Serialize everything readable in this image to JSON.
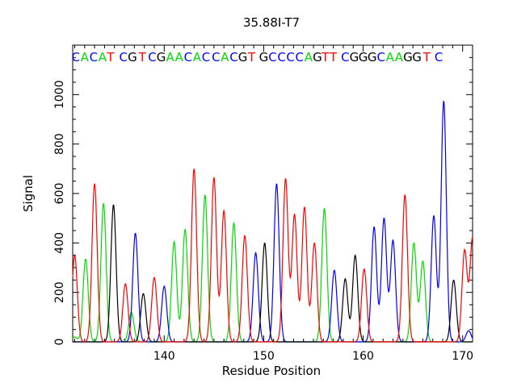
{
  "chart_data": {
    "type": "line",
    "title": "35.88I-T7",
    "xlabel": "Residue Position",
    "ylabel": "Signal",
    "xlim": [
      130.8,
      171.0
    ],
    "ylim": [
      0,
      1200
    ],
    "xticks": [
      140,
      150,
      160,
      170
    ],
    "yticks": [
      0,
      200,
      400,
      600,
      800,
      1000
    ],
    "grid": false,
    "colors": {
      "A": "#00dd00",
      "C": "#0000ff",
      "G": "#000000",
      "T": "#ff0000"
    },
    "bases": [
      {
        "base": "C",
        "x": 131.1
      },
      {
        "base": "A",
        "x": 132.0
      },
      {
        "base": "C",
        "x": 132.9
      },
      {
        "base": "A",
        "x": 133.8
      },
      {
        "base": "T",
        "x": 134.6
      },
      {
        "base": "C",
        "x": 135.9
      },
      {
        "base": "G",
        "x": 136.8
      },
      {
        "base": "T",
        "x": 137.8
      },
      {
        "base": "C",
        "x": 138.8
      },
      {
        "base": "G",
        "x": 139.7
      },
      {
        "base": "A",
        "x": 140.6
      },
      {
        "base": "A",
        "x": 141.5
      },
      {
        "base": "C",
        "x": 142.4
      },
      {
        "base": "A",
        "x": 143.3
      },
      {
        "base": "C",
        "x": 144.2
      },
      {
        "base": "C",
        "x": 145.2
      },
      {
        "base": "A",
        "x": 146.1
      },
      {
        "base": "C",
        "x": 147.0
      },
      {
        "base": "G",
        "x": 147.9
      },
      {
        "base": "T",
        "x": 148.8
      },
      {
        "base": "G",
        "x": 150.0
      },
      {
        "base": "C",
        "x": 150.9
      },
      {
        "base": "C",
        "x": 151.8
      },
      {
        "base": "C",
        "x": 152.7
      },
      {
        "base": "C",
        "x": 153.6
      },
      {
        "base": "A",
        "x": 154.5
      },
      {
        "base": "G",
        "x": 155.4
      },
      {
        "base": "T",
        "x": 156.2
      },
      {
        "base": "T",
        "x": 157.0
      },
      {
        "base": "C",
        "x": 158.2
      },
      {
        "base": "G",
        "x": 159.1
      },
      {
        "base": "G",
        "x": 160.0
      },
      {
        "base": "G",
        "x": 160.9
      },
      {
        "base": "C",
        "x": 161.8
      },
      {
        "base": "A",
        "x": 162.7
      },
      {
        "base": "A",
        "x": 163.6
      },
      {
        "base": "G",
        "x": 164.5
      },
      {
        "base": "G",
        "x": 165.4
      },
      {
        "base": "T",
        "x": 166.4
      },
      {
        "base": "C",
        "x": 167.6
      }
    ],
    "series": [
      {
        "base": "A",
        "peaks": [
          {
            "x": 131.0,
            "y": 20
          },
          {
            "x": 132.1,
            "y": 335
          },
          {
            "x": 133.9,
            "y": 560
          },
          {
            "x": 136.7,
            "y": 120
          },
          {
            "x": 141.0,
            "y": 405
          },
          {
            "x": 142.1,
            "y": 455
          },
          {
            "x": 144.1,
            "y": 595
          },
          {
            "x": 147.0,
            "y": 480
          },
          {
            "x": 156.1,
            "y": 540
          },
          {
            "x": 165.1,
            "y": 400
          },
          {
            "x": 166.0,
            "y": 325
          }
        ]
      },
      {
        "base": "C",
        "peaks": [
          {
            "x": 137.1,
            "y": 440
          },
          {
            "x": 140.0,
            "y": 225
          },
          {
            "x": 149.2,
            "y": 360
          },
          {
            "x": 151.3,
            "y": 640
          },
          {
            "x": 157.1,
            "y": 290
          },
          {
            "x": 161.1,
            "y": 465
          },
          {
            "x": 162.1,
            "y": 500
          },
          {
            "x": 163.0,
            "y": 410
          },
          {
            "x": 167.1,
            "y": 510
          },
          {
            "x": 168.1,
            "y": 975
          },
          {
            "x": 170.6,
            "y": 45
          }
        ]
      },
      {
        "base": "G",
        "peaks": [
          {
            "x": 134.9,
            "y": 555
          },
          {
            "x": 137.9,
            "y": 195
          },
          {
            "x": 150.1,
            "y": 400
          },
          {
            "x": 158.2,
            "y": 255
          },
          {
            "x": 159.2,
            "y": 350
          },
          {
            "x": 169.1,
            "y": 250
          }
        ]
      },
      {
        "base": "T",
        "peaks": [
          {
            "x": 131.0,
            "y": 350
          },
          {
            "x": 133.0,
            "y": 640
          },
          {
            "x": 136.1,
            "y": 235
          },
          {
            "x": 139.0,
            "y": 260
          },
          {
            "x": 143.0,
            "y": 700
          },
          {
            "x": 145.0,
            "y": 665
          },
          {
            "x": 146.0,
            "y": 530
          },
          {
            "x": 148.1,
            "y": 430
          },
          {
            "x": 152.2,
            "y": 660
          },
          {
            "x": 153.1,
            "y": 515
          },
          {
            "x": 154.1,
            "y": 545
          },
          {
            "x": 155.1,
            "y": 400
          },
          {
            "x": 160.1,
            "y": 295
          },
          {
            "x": 164.2,
            "y": 595
          },
          {
            "x": 170.2,
            "y": 370
          },
          {
            "x": 171.0,
            "y": 420
          }
        ]
      }
    ]
  }
}
